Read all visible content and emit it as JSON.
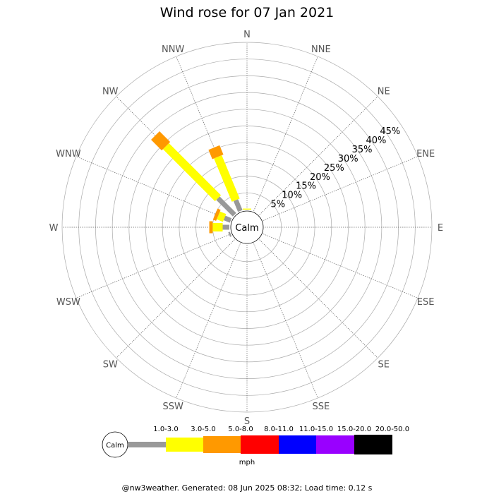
{
  "chart_data": {
    "type": "wind-rose",
    "title": "Wind rose for 07 Jan 2021",
    "directions": [
      "N",
      "NNE",
      "NE",
      "ENE",
      "E",
      "ESE",
      "SE",
      "SSE",
      "S",
      "SSW",
      "SW",
      "WSW",
      "W",
      "WNW",
      "NW",
      "NNW"
    ],
    "radial_ticks": [
      "5%",
      "10%",
      "15%",
      "20%",
      "25%",
      "30%",
      "35%",
      "40%",
      "45%"
    ],
    "radial_max": 50,
    "calm_label": "Calm",
    "unit": "mph",
    "speed_bins": [
      {
        "name": "1.0-3.0",
        "color": "#999999"
      },
      {
        "name": "3.0-5.0",
        "color": "#ffff00"
      },
      {
        "name": "5.0-8.0",
        "color": "#ff9900"
      },
      {
        "name": "8.0-11.0",
        "color": "#ff0000"
      },
      {
        "name": "11.0-15.0",
        "color": "#0000ff"
      },
      {
        "name": "15.0-20.0",
        "color": "#9900ff"
      },
      {
        "name": "20.0-50.0",
        "color": "#000000"
      }
    ],
    "series": [
      {
        "direction": "N",
        "values": [
          0,
          0.3,
          0,
          0,
          0,
          0,
          0
        ]
      },
      {
        "direction": "NNW",
        "values": [
          3.5,
          14,
          3,
          0,
          0,
          0,
          0
        ]
      },
      {
        "direction": "NW",
        "values": [
          7,
          22,
          4.5,
          0,
          0,
          0,
          0
        ]
      },
      {
        "direction": "WNW",
        "values": [
          2,
          2,
          1,
          0,
          0,
          0,
          0
        ]
      },
      {
        "direction": "W",
        "values": [
          2,
          3,
          1,
          0,
          0,
          0,
          0
        ]
      },
      {
        "direction": "WSW",
        "values": [
          0.5,
          0,
          0,
          0,
          0,
          0,
          0
        ]
      }
    ],
    "grid": true
  },
  "footer": "@nw3weather. Generated: 08 Jun 2025 08:32; Load time: 0.12 s"
}
